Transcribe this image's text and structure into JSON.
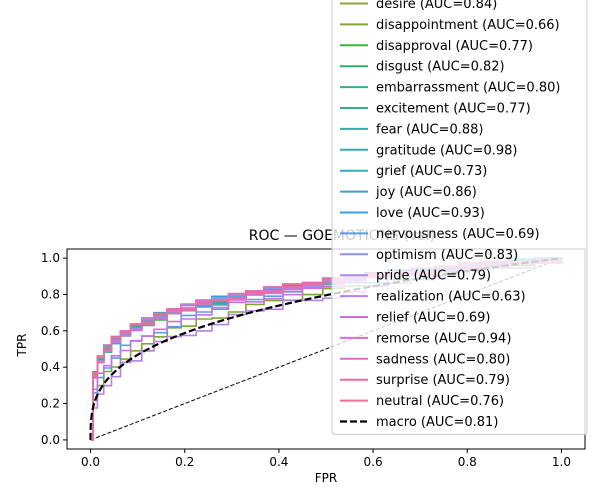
{
  "chart_data": {
    "type": "line",
    "title": "ROC — GOEMOTIONS (val)",
    "xlabel": "FPR",
    "ylabel": "TPR",
    "xlim": [
      -0.05,
      1.05
    ],
    "ylim": [
      -0.05,
      1.05
    ],
    "xticks": [
      "0.0",
      "0.2",
      "0.4",
      "0.6",
      "0.8",
      "1.0"
    ],
    "yticks": [
      "0.0",
      "0.2",
      "0.4",
      "0.6",
      "0.8",
      "1.0"
    ],
    "grid": false,
    "legend_placement": "upper right (extends above plot area)",
    "series": [
      {
        "name": "desire (AUC=0.84)",
        "color": "#94a534",
        "auc": 0.84
      },
      {
        "name": "disappointment (AUC=0.66)",
        "color": "#7ca632",
        "auc": 0.66
      },
      {
        "name": "disapproval (AUC=0.77)",
        "color": "#3fb03f",
        "auc": 0.77
      },
      {
        "name": "disgust (AUC=0.82)",
        "color": "#33ae6e",
        "auc": 0.82
      },
      {
        "name": "embarrassment (AUC=0.80)",
        "color": "#35ad87",
        "auc": 0.8
      },
      {
        "name": "excitement (AUC=0.77)",
        "color": "#36ab99",
        "auc": 0.77
      },
      {
        "name": "fear (AUC=0.88)",
        "color": "#37aaa5",
        "auc": 0.88
      },
      {
        "name": "gratitude (AUC=0.98)",
        "color": "#38a8b0",
        "auc": 0.98
      },
      {
        "name": "grief (AUC=0.73)",
        "color": "#39a7bb",
        "auc": 0.73
      },
      {
        "name": "joy (AUC=0.86)",
        "color": "#3ba4c8",
        "auc": 0.86
      },
      {
        "name": "love (AUC=0.93)",
        "color": "#3ea0dc",
        "auc": 0.93
      },
      {
        "name": "nervousness (AUC=0.69)",
        "color": "#5b9be8",
        "auc": 0.69
      },
      {
        "name": "optimism (AUC=0.83)",
        "color": "#8697ea",
        "auc": 0.83
      },
      {
        "name": "pride (AUC=0.79)",
        "color": "#9f8fe8",
        "auc": 0.79
      },
      {
        "name": "realization (AUC=0.63)",
        "color": "#b481e7",
        "auc": 0.63
      },
      {
        "name": "relief (AUC=0.69)",
        "color": "#cf6fe4",
        "auc": 0.69
      },
      {
        "name": "remorse (AUC=0.94)",
        "color": "#df6ad3",
        "auc": 0.94
      },
      {
        "name": "sadness (AUC=0.80)",
        "color": "#e66bc2",
        "auc": 0.8
      },
      {
        "name": "surprise (AUC=0.79)",
        "color": "#ea6aae",
        "auc": 0.79
      },
      {
        "name": "neutral (AUC=0.76)",
        "color": "#ec6f97",
        "auc": 0.76
      },
      {
        "name": "macro (AUC=0.81)",
        "color": "#000000",
        "auc": 0.81,
        "style": "dashed"
      }
    ],
    "chance_line": {
      "x": [
        0,
        1
      ],
      "y": [
        0,
        1
      ],
      "style": "dashed",
      "color": "#000000"
    }
  }
}
